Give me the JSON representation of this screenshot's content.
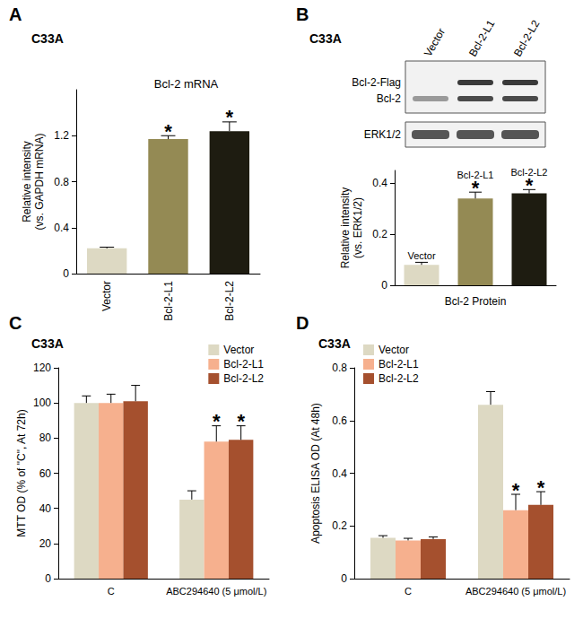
{
  "chart_data": [
    {
      "type": "bar",
      "label": "A",
      "title": "C33A",
      "subtitle": "Bcl-2 mRNA",
      "ylabel": "Relative intensity\n(vs. GAPDH mRNA)",
      "categories": [
        "Vector",
        "Bcl-2-L1",
        "Bcl-2-L2"
      ],
      "values": [
        0.22,
        1.17,
        1.24
      ],
      "errors": [
        0.01,
        0.03,
        0.08
      ],
      "annotations": [
        null,
        "*",
        "*"
      ],
      "colors": [
        "#ddd9c3",
        "#948a54",
        "#1e1c11"
      ],
      "ylim": [
        0,
        1.6
      ],
      "yticks": [
        0,
        0.4,
        0.8,
        1.2
      ],
      "grid": false
    },
    {
      "type": "bar",
      "label": "B",
      "title": "C33A",
      "xlabel": "Bcl-2 Protein",
      "ylabel": "Relative intensity\n(vs. ERK1/2)",
      "categories": [
        "Vector",
        "Bcl-2-L1",
        "Bcl-2-L2"
      ],
      "values": [
        0.08,
        0.34,
        0.36
      ],
      "errors": [
        0.01,
        0.025,
        0.015
      ],
      "annotations": [
        null,
        "*",
        "*"
      ],
      "colors": [
        "#ddd9c3",
        "#948a54",
        "#1e1c11"
      ],
      "ylim": [
        0,
        0.45
      ],
      "yticks": [
        0,
        0.2,
        0.4
      ],
      "grid": false,
      "tick_labels": "y",
      "blot": {
        "lanes": [
          "Vector",
          "Bcl-2-L1",
          "Bcl-2-L2"
        ],
        "rows": [
          "Bcl-2-Flag",
          "Bcl-2",
          "ERK1/2"
        ]
      }
    },
    {
      "type": "bar",
      "label": "C",
      "title": "C33A",
      "ylabel": "MTT OD (% of \"C\", At 72h)",
      "categories": [
        "C",
        "ABC294640 (5 μmol/L)"
      ],
      "series": [
        {
          "name": "Vector",
          "color": "#ddd9c3",
          "values": [
            100,
            45
          ],
          "errors": [
            4,
            5
          ],
          "annotations": [
            null,
            null
          ]
        },
        {
          "name": "Bcl-2-L1",
          "color": "#f6b08e",
          "values": [
            100,
            78
          ],
          "errors": [
            5,
            9
          ],
          "annotations": [
            null,
            "*"
          ]
        },
        {
          "name": "Bcl-2-L2",
          "color": "#a5502e",
          "values": [
            101,
            79
          ],
          "errors": [
            9,
            8
          ],
          "annotations": [
            null,
            "*"
          ]
        }
      ],
      "ylim": [
        0,
        120
      ],
      "yticks": [
        0,
        20,
        40,
        60,
        80,
        100,
        120
      ],
      "grid": false,
      "legend": "upper right"
    },
    {
      "type": "bar",
      "label": "D",
      "title": "C33A",
      "ylabel": "Apoptosis ELISA OD (At 48h)",
      "categories": [
        "C",
        "ABC294640 (5 μmol/L)"
      ],
      "series": [
        {
          "name": "Vector",
          "color": "#ddd9c3",
          "values": [
            0.155,
            0.66
          ],
          "errors": [
            0.008,
            0.05
          ],
          "annotations": [
            null,
            null
          ]
        },
        {
          "name": "Bcl-2-L1",
          "color": "#f6b08e",
          "values": [
            0.145,
            0.26
          ],
          "errors": [
            0.008,
            0.06
          ],
          "annotations": [
            null,
            "*"
          ]
        },
        {
          "name": "Bcl-2-L2",
          "color": "#a5502e",
          "values": [
            0.15,
            0.28
          ],
          "errors": [
            0.008,
            0.05
          ],
          "annotations": [
            null,
            "*"
          ]
        }
      ],
      "ylim": [
        0,
        0.8
      ],
      "yticks": [
        0,
        0.2,
        0.4,
        0.6,
        0.8
      ],
      "grid": false,
      "legend": "upper left"
    }
  ]
}
